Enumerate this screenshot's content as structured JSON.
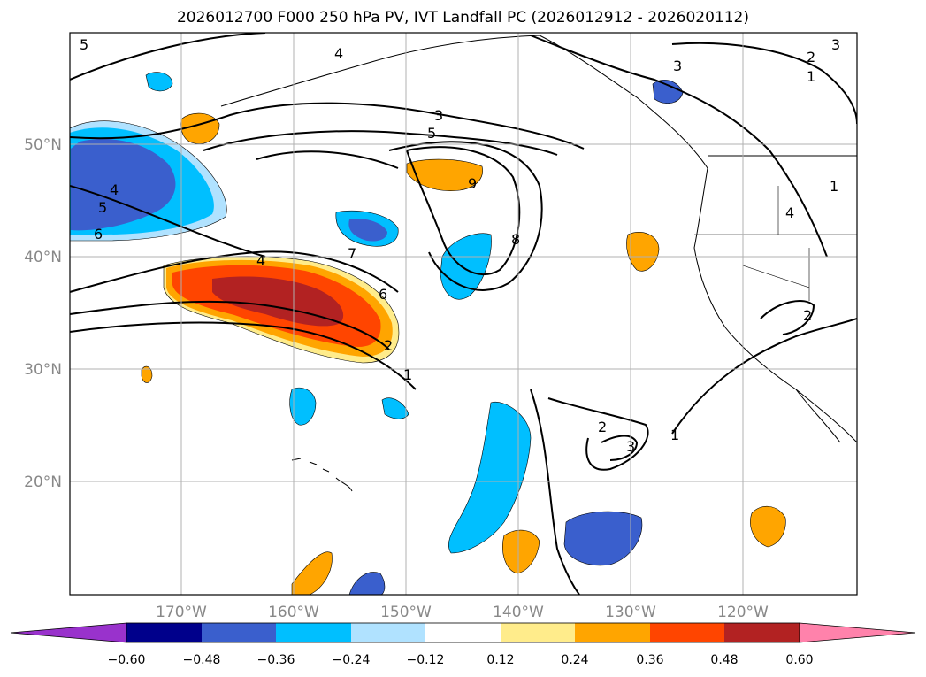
{
  "title": "2026012700 F000 250 hPa PV, IVT Landfall PC (2026012912 - 2026020112)",
  "lon_labels": [
    "170°W",
    "160°W",
    "150°W",
    "140°W",
    "130°W",
    "120°W"
  ],
  "lat_labels": [
    "50°N",
    "40°N",
    "30°N",
    "20°N"
  ],
  "contour_labels": [
    {
      "text": "5"
    },
    {
      "text": "4"
    },
    {
      "text": "3"
    },
    {
      "text": "5"
    },
    {
      "text": "9"
    },
    {
      "text": "4"
    },
    {
      "text": "5"
    },
    {
      "text": "6"
    },
    {
      "text": "7"
    },
    {
      "text": "8"
    },
    {
      "text": "4"
    },
    {
      "text": "6"
    },
    {
      "text": "2"
    },
    {
      "text": "1"
    },
    {
      "text": "3"
    },
    {
      "text": "2"
    },
    {
      "text": "1"
    },
    {
      "text": "3"
    },
    {
      "text": "1"
    },
    {
      "text": "3"
    },
    {
      "text": "2"
    },
    {
      "text": "1"
    },
    {
      "text": "4"
    },
    {
      "text": "2"
    }
  ],
  "colorbar": {
    "ticks": [
      "−0.60",
      "−0.48",
      "−0.36",
      "−0.24",
      "−0.12",
      "0.12",
      "0.24",
      "0.36",
      "0.48",
      "0.60"
    ],
    "colors": [
      "#9932cc",
      "#00008b",
      "#3a5fcd",
      "#00bfff",
      "#b0e2ff",
      "#ffffff",
      "#ffec8b",
      "#ffa500",
      "#ff4500",
      "#b22222",
      "#ff82ab"
    ]
  }
}
